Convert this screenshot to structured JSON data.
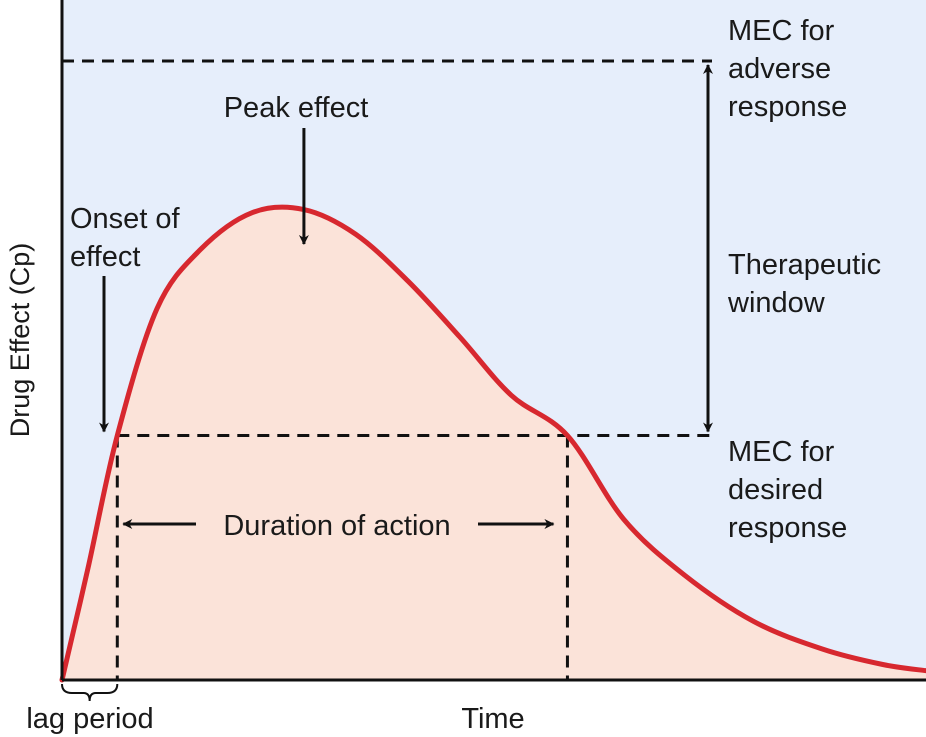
{
  "chart_data": {
    "type": "area",
    "title": "",
    "xlabel": "Time",
    "ylabel": "Drug Effect (Cp)",
    "xlim": [
      0,
      10
    ],
    "ylim": [
      0,
      10
    ],
    "grid": false,
    "colors": {
      "background": "#e6eefb",
      "curve": "#d7282f",
      "fill": "#fbe3d9",
      "lines": "#111111"
    },
    "series": [
      {
        "x": [
          0,
          0.3,
          0.64,
          1.1,
          1.6,
          2.2,
          2.8,
          3.4,
          4.0,
          4.6,
          5.2,
          5.85,
          6.5,
          7.2,
          8.0,
          8.8,
          9.5,
          10.0
        ],
        "y": [
          0,
          1.8,
          3.95,
          6.0,
          6.95,
          7.55,
          7.6,
          7.2,
          6.45,
          5.55,
          4.6,
          3.95,
          2.6,
          1.7,
          0.95,
          0.5,
          0.25,
          0.15
        ]
      }
    ],
    "thresholds": {
      "mec_desired": 3.95,
      "mec_adverse": 10.0
    },
    "markers": {
      "onset_x": 0.64,
      "offset_x": 5.85,
      "peak_x": 2.8
    },
    "annotations": {
      "peak": "Peak effect",
      "onset_line1": "Onset of",
      "onset_line2": "effect",
      "duration": "Duration of action",
      "lag": "lag period",
      "adverse_line1": "MEC for",
      "adverse_line2": "adverse",
      "adverse_line3": "response",
      "window_line1": "Therapeutic",
      "window_line2": "window",
      "desired_line1": "MEC for",
      "desired_line2": "desired",
      "desired_line3": "response"
    }
  }
}
